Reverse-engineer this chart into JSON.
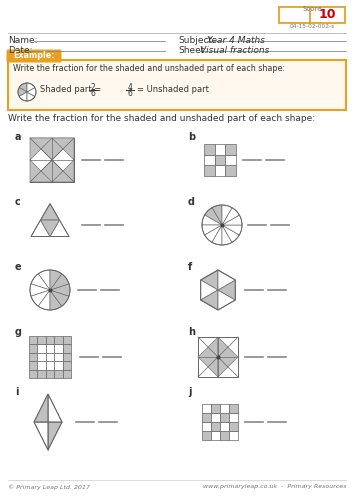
{
  "score_label": "Score",
  "score_value": "10",
  "sheet_code": "04-15-02-002-s",
  "name_label": "Name:",
  "date_label": "Date:",
  "subject_label": "Subject:",
  "subject_value": "Year 4 Maths",
  "sheet_label": "Sheet:",
  "sheet_value": "Visual fractions",
  "example_label": "Example:",
  "example_text": "Write the fraction for the shaded and unshaded part of each shape:",
  "instruction": "Write the fraction for the shaded and unshaded part of each shape:",
  "footer_left": "© Primary Leap Ltd. 2017",
  "footer_right": "www.primaryleap.co.uk  -  Primary Resources",
  "bg_color": "#ffffff",
  "example_bg": "#fef8ee",
  "example_border": "#e8a020",
  "gray_fill": "#c0c0c0",
  "score_border": "#e8a020",
  "score_red": "#cc0000",
  "text_dark": "#333333",
  "text_mid": "#555555",
  "text_light": "#777777",
  "line_color": "#888888"
}
